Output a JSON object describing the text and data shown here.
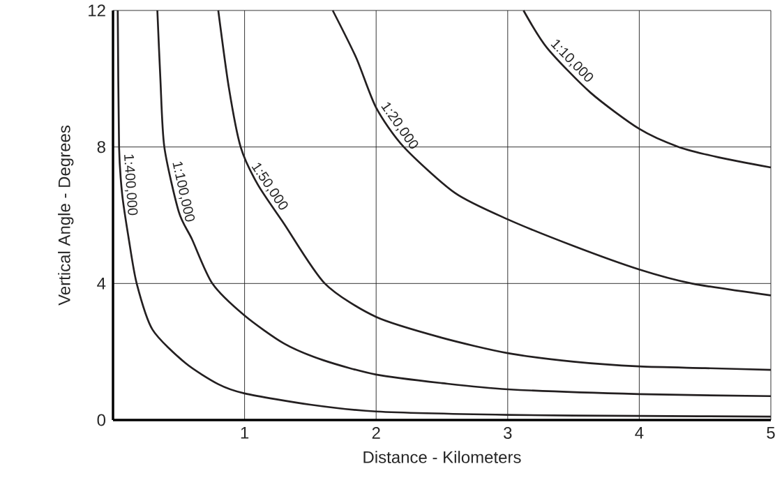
{
  "chart_data": {
    "type": "line",
    "xlabel": "Distance - Kilometers",
    "ylabel": "Vertical Angle - Degrees",
    "xlim": [
      0,
      5
    ],
    "ylim": [
      0,
      12
    ],
    "xticks": [
      1,
      2,
      3,
      4,
      5
    ],
    "yticks": [
      0,
      4,
      8,
      12
    ],
    "grid": true,
    "legend": false,
    "marker": "none",
    "line_style": "solid",
    "series": [
      {
        "name": "1:10,000",
        "color": "#231f20",
        "x": [
          3.12,
          3.3,
          3.63,
          4.0,
          4.3,
          4.6,
          5.0
        ],
        "values": [
          12,
          10.9,
          9.59,
          8.53,
          8.0,
          7.7,
          7.4
        ]
      },
      {
        "name": "1:20,000",
        "color": "#231f20",
        "x": [
          1.67,
          1.85,
          2.0,
          2.21,
          2.6,
          3.0,
          3.5,
          4.0,
          4.4,
          5.0
        ],
        "values": [
          12,
          10.6,
          9.15,
          8,
          6.65,
          5.88,
          5.1,
          4.41,
          4.0,
          3.65
        ]
      },
      {
        "name": "1:50,000",
        "color": "#231f20",
        "x": [
          0.8,
          0.88,
          0.97,
          1.1,
          1.3,
          1.61,
          2.0,
          2.5,
          3.0,
          3.5,
          4.0,
          4.5,
          5.0
        ],
        "values": [
          12,
          9.75,
          8,
          6.9,
          5.75,
          4,
          3.02,
          2.41,
          1.96,
          1.71,
          1.57,
          1.52,
          1.47
        ]
      },
      {
        "name": "1:100,000",
        "color": "#231f20",
        "x": [
          0.337,
          0.36,
          0.39,
          0.5,
          0.6,
          0.755,
          1.0,
          1.3,
          1.6,
          2.0,
          2.5,
          3.0,
          4.0,
          5.0
        ],
        "values": [
          12,
          10,
          8,
          6.1,
          5.3,
          4,
          3.06,
          2.24,
          1.75,
          1.33,
          1.08,
          0.9,
          0.76,
          0.7
        ]
      },
      {
        "name": "1:400,000",
        "color": "#231f20",
        "x": [
          0.036,
          0.046,
          0.07,
          0.12,
          0.18,
          0.3,
          0.55,
          0.8,
          1.0,
          1.5,
          2.0,
          3.0,
          4.0,
          5.0
        ],
        "values": [
          12,
          8,
          6.6,
          5.3,
          4,
          2.65,
          1.67,
          1.05,
          0.78,
          0.45,
          0.25,
          0.15,
          0.12,
          0.1
        ]
      }
    ]
  }
}
